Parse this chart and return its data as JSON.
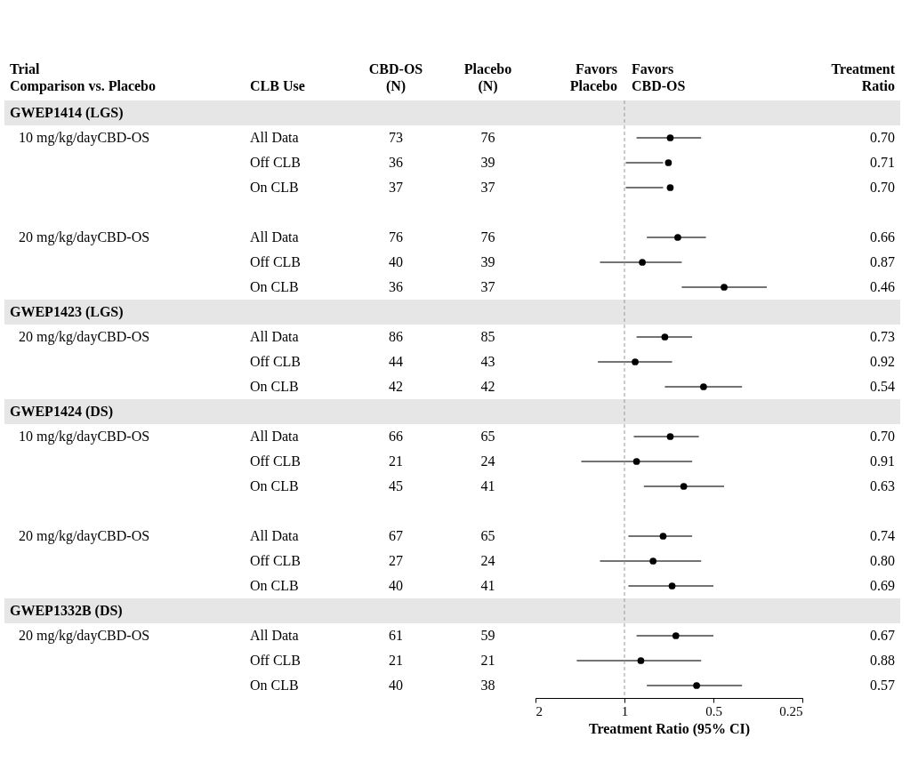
{
  "chart_data": [
    {
      "type": "other",
      "title": "Trial\nComparison vs. Placebo",
      "annotations": [
        "GWEP1414 (LGS)",
        "10 mg/kg/dayCBD-OS",
        null,
        null,
        null,
        "20 mg/kg/dayCBD-OS",
        null,
        null,
        "GWEP1423 (LGS)",
        "20 mg/kg/dayCBD-OS",
        null,
        null,
        "GWEP1424 (DS)",
        "10 mg/kg/dayCBD-OS",
        null,
        null,
        null,
        "20 mg/kg/dayCBD-OS",
        null,
        null,
        "GWEP1332B (DS)",
        "20 mg/kg/dayCBD-OS",
        null,
        null
      ]
    },
    {
      "type": "other",
      "title": "CLB Use",
      "annotations": [
        null,
        "All Data",
        "Off CLB",
        "On CLB",
        null,
        "All Data",
        "Off CLB",
        "On CLB",
        null,
        "All Data",
        "Off CLB",
        "On CLB",
        null,
        "All Data",
        "Off CLB",
        "On CLB",
        null,
        "All Data",
        "Off CLB",
        "On CLB",
        null,
        "All Data",
        "Off CLB",
        "On CLB"
      ]
    },
    {
      "type": "other",
      "title": "CBD-OS\n(N)",
      "annotations": [
        null,
        "73",
        "36",
        "37",
        null,
        "76",
        "40",
        "36",
        null,
        "86",
        "44",
        "42",
        null,
        "66",
        "21",
        "45",
        null,
        "67",
        "27",
        "40",
        null,
        "61",
        "21",
        "40"
      ]
    },
    {
      "type": "other",
      "title": "Placebo\n(N)",
      "annotations": [
        null,
        "76",
        "39",
        "37",
        null,
        "76",
        "39",
        "37",
        null,
        "85",
        "43",
        "42",
        null,
        "65",
        "24",
        "41",
        null,
        "65",
        "24",
        "41",
        null,
        "59",
        "21",
        "38"
      ]
    },
    {
      "type": "scatter",
      "orientation": "horizontal",
      "xlabel": "Treatment Ratio (95% CI)",
      "log": "x",
      "xlim": [
        2,
        0.25
      ],
      "xticks": [
        2,
        1,
        0.5,
        0.25
      ],
      "grid": false,
      "marker": "circle",
      "color": "#000000",
      "annotations": [
        "Favors\nPlacebo",
        "Favors\nCBD-OS"
      ],
      "ref_lines": [
        {
          "axis": "x",
          "value": 1,
          "color": "#999999",
          "line_style": "dashed"
        }
      ],
      "categories": [
        null,
        null,
        null,
        null,
        null,
        null,
        null,
        null,
        null,
        null,
        null,
        null,
        null,
        null,
        null,
        null,
        null,
        null,
        null,
        null,
        null,
        null,
        null,
        null
      ],
      "values": [
        null,
        0.7,
        0.71,
        0.7,
        null,
        0.66,
        0.87,
        0.46,
        null,
        0.73,
        0.92,
        0.54,
        null,
        0.7,
        0.91,
        0.63,
        null,
        0.74,
        0.8,
        0.69,
        null,
        0.67,
        0.88,
        0.57
      ],
      "errors": [
        null,
        [
          0.55,
          0.91
        ],
        [
          0.74,
          0.99
        ],
        [
          0.74,
          0.99
        ],
        null,
        [
          0.53,
          0.84
        ],
        [
          0.64,
          1.21
        ],
        [
          0.33,
          0.64
        ],
        null,
        [
          0.59,
          0.91
        ],
        [
          0.69,
          1.23
        ],
        [
          0.4,
          0.73
        ],
        null,
        [
          0.56,
          0.93
        ],
        [
          0.59,
          1.4
        ],
        [
          0.46,
          0.86
        ],
        null,
        [
          0.59,
          0.97
        ],
        [
          0.55,
          1.21
        ],
        [
          0.5,
          0.97
        ],
        null,
        [
          0.5,
          0.91
        ],
        [
          0.55,
          1.45
        ],
        [
          0.4,
          0.84
        ]
      ]
    },
    {
      "type": "other",
      "title": "Treatment\nRatio",
      "annotations": [
        null,
        "0.70",
        "0.71",
        "0.70",
        null,
        "0.66",
        "0.87",
        "0.46",
        null,
        "0.73",
        "0.92",
        "0.54",
        null,
        "0.70",
        "0.91",
        "0.63",
        null,
        "0.74",
        "0.80",
        "0.69",
        null,
        "0.67",
        "0.88",
        "0.57"
      ]
    }
  ]
}
